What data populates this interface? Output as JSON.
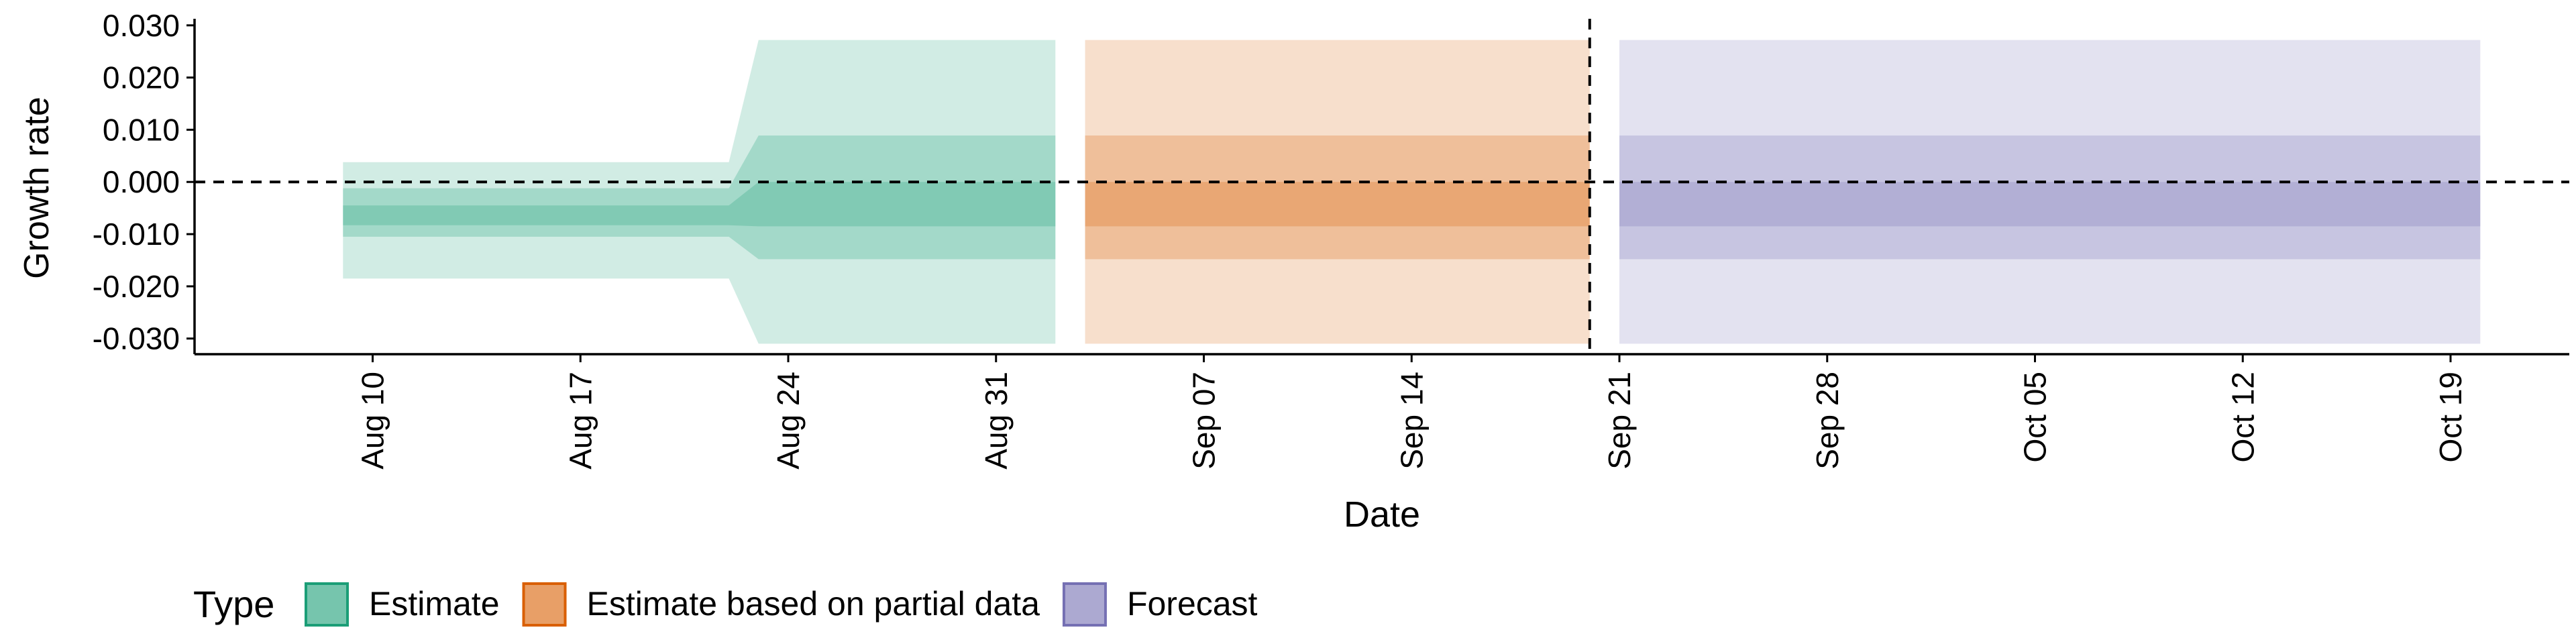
{
  "chart_data": {
    "type": "area",
    "xlabel": "Date",
    "ylabel": "Growth rate",
    "ylim": [
      -0.033,
      0.031
    ],
    "xlim": [
      "2020-08-04",
      "2020-10-23"
    ],
    "y_ticks": [
      {
        "value": 0.03,
        "label": "0.030"
      },
      {
        "value": 0.02,
        "label": "0.020"
      },
      {
        "value": 0.01,
        "label": "0.010"
      },
      {
        "value": 0.0,
        "label": "0.000"
      },
      {
        "value": -0.01,
        "label": "-0.010"
      },
      {
        "value": -0.02,
        "label": "-0.020"
      },
      {
        "value": -0.03,
        "label": "-0.030"
      }
    ],
    "x_ticks": [
      {
        "date": "2020-08-10",
        "label": "Aug 10"
      },
      {
        "date": "2020-08-17",
        "label": "Aug 17"
      },
      {
        "date": "2020-08-24",
        "label": "Aug 24"
      },
      {
        "date": "2020-08-31",
        "label": "Aug 31"
      },
      {
        "date": "2020-09-07",
        "label": "Sep 07"
      },
      {
        "date": "2020-09-14",
        "label": "Sep 14"
      },
      {
        "date": "2020-09-21",
        "label": "Sep 21"
      },
      {
        "date": "2020-09-28",
        "label": "Sep 28"
      },
      {
        "date": "2020-10-05",
        "label": "Oct 05"
      },
      {
        "date": "2020-10-12",
        "label": "Oct 12"
      },
      {
        "date": "2020-10-19",
        "label": "Oct 19"
      }
    ],
    "reference_lines": {
      "hline_y": 0,
      "vline_date": "2020-09-20"
    },
    "legend": {
      "title": "Type",
      "placement": "bottom-left",
      "items": [
        {
          "label": "Estimate",
          "color": "#1b9e77"
        },
        {
          "label": "Estimate based on partial data",
          "color": "#d95f02"
        },
        {
          "label": "Forecast",
          "color": "#7570b3"
        }
      ]
    },
    "series": [
      {
        "name": "Estimate",
        "color": "#1b9e77",
        "points": [
          {
            "date": "2020-08-09",
            "lower90": -0.0185,
            "lower50": -0.0105,
            "lower20": -0.0083,
            "upper20": -0.0045,
            "upper50": -0.0012,
            "upper90": 0.0038
          },
          {
            "date": "2020-08-22",
            "lower90": -0.0185,
            "lower50": -0.0105,
            "lower20": -0.0083,
            "upper20": -0.0045,
            "upper50": -0.0012,
            "upper90": 0.0038
          },
          {
            "date": "2020-08-23",
            "lower90": -0.031,
            "lower50": -0.0148,
            "lower20": -0.0085,
            "upper20": 0.0,
            "upper50": 0.0089,
            "upper90": 0.0272
          },
          {
            "date": "2020-09-02",
            "lower90": -0.031,
            "lower50": -0.0148,
            "lower20": -0.0085,
            "upper20": 0.0,
            "upper50": 0.0089,
            "upper90": 0.0272
          }
        ]
      },
      {
        "name": "Estimate based on partial data",
        "color": "#d95f02",
        "points": [
          {
            "date": "2020-09-03",
            "lower90": -0.031,
            "lower50": -0.0148,
            "lower20": -0.0085,
            "upper20": 0.0,
            "upper50": 0.0089,
            "upper90": 0.0272
          },
          {
            "date": "2020-09-20",
            "lower90": -0.031,
            "lower50": -0.0148,
            "lower20": -0.0085,
            "upper20": 0.0,
            "upper50": 0.0089,
            "upper90": 0.0272
          }
        ]
      },
      {
        "name": "Forecast",
        "color": "#7570b3",
        "points": [
          {
            "date": "2020-09-21",
            "lower90": -0.031,
            "lower50": -0.0148,
            "lower20": -0.0085,
            "upper20": 0.0,
            "upper50": 0.0089,
            "upper90": 0.0272
          },
          {
            "date": "2020-10-20",
            "lower90": -0.031,
            "lower50": -0.0148,
            "lower20": -0.0085,
            "upper20": 0.0,
            "upper50": 0.0089,
            "upper90": 0.0272
          }
        ]
      }
    ]
  }
}
